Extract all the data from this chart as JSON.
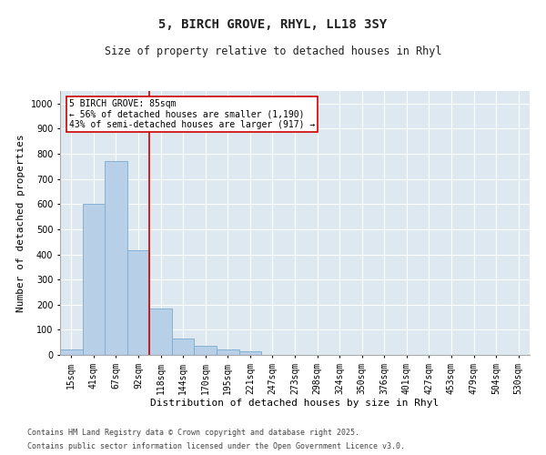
{
  "title1": "5, BIRCH GROVE, RHYL, LL18 3SY",
  "title2": "Size of property relative to detached houses in Rhyl",
  "xlabel": "Distribution of detached houses by size in Rhyl",
  "ylabel": "Number of detached properties",
  "categories": [
    "15sqm",
    "41sqm",
    "67sqm",
    "92sqm",
    "118sqm",
    "144sqm",
    "170sqm",
    "195sqm",
    "221sqm",
    "247sqm",
    "273sqm",
    "298sqm",
    "324sqm",
    "350sqm",
    "376sqm",
    "401sqm",
    "427sqm",
    "453sqm",
    "479sqm",
    "504sqm",
    "530sqm"
  ],
  "values": [
    20,
    600,
    770,
    415,
    185,
    65,
    35,
    20,
    15,
    0,
    0,
    0,
    0,
    0,
    0,
    0,
    0,
    0,
    0,
    0,
    0
  ],
  "bar_color": "#b8cfe8",
  "bar_edge_color": "#7aaad0",
  "vline_color": "#cc0000",
  "annotation_text": "5 BIRCH GROVE: 85sqm\n← 56% of detached houses are smaller (1,190)\n43% of semi-detached houses are larger (917) →",
  "annotation_box_color": "#ffffff",
  "annotation_box_edge": "#cc0000",
  "ylim": [
    0,
    1050
  ],
  "yticks": [
    0,
    100,
    200,
    300,
    400,
    500,
    600,
    700,
    800,
    900,
    1000
  ],
  "background_color": "#dde8f0",
  "grid_color": "#ffffff",
  "footer1": "Contains HM Land Registry data © Crown copyright and database right 2025.",
  "footer2": "Contains public sector information licensed under the Open Government Licence v3.0.",
  "title_fontsize": 10,
  "subtitle_fontsize": 8.5,
  "axis_label_fontsize": 8,
  "tick_fontsize": 7,
  "annotation_fontsize": 7,
  "footer_fontsize": 6
}
